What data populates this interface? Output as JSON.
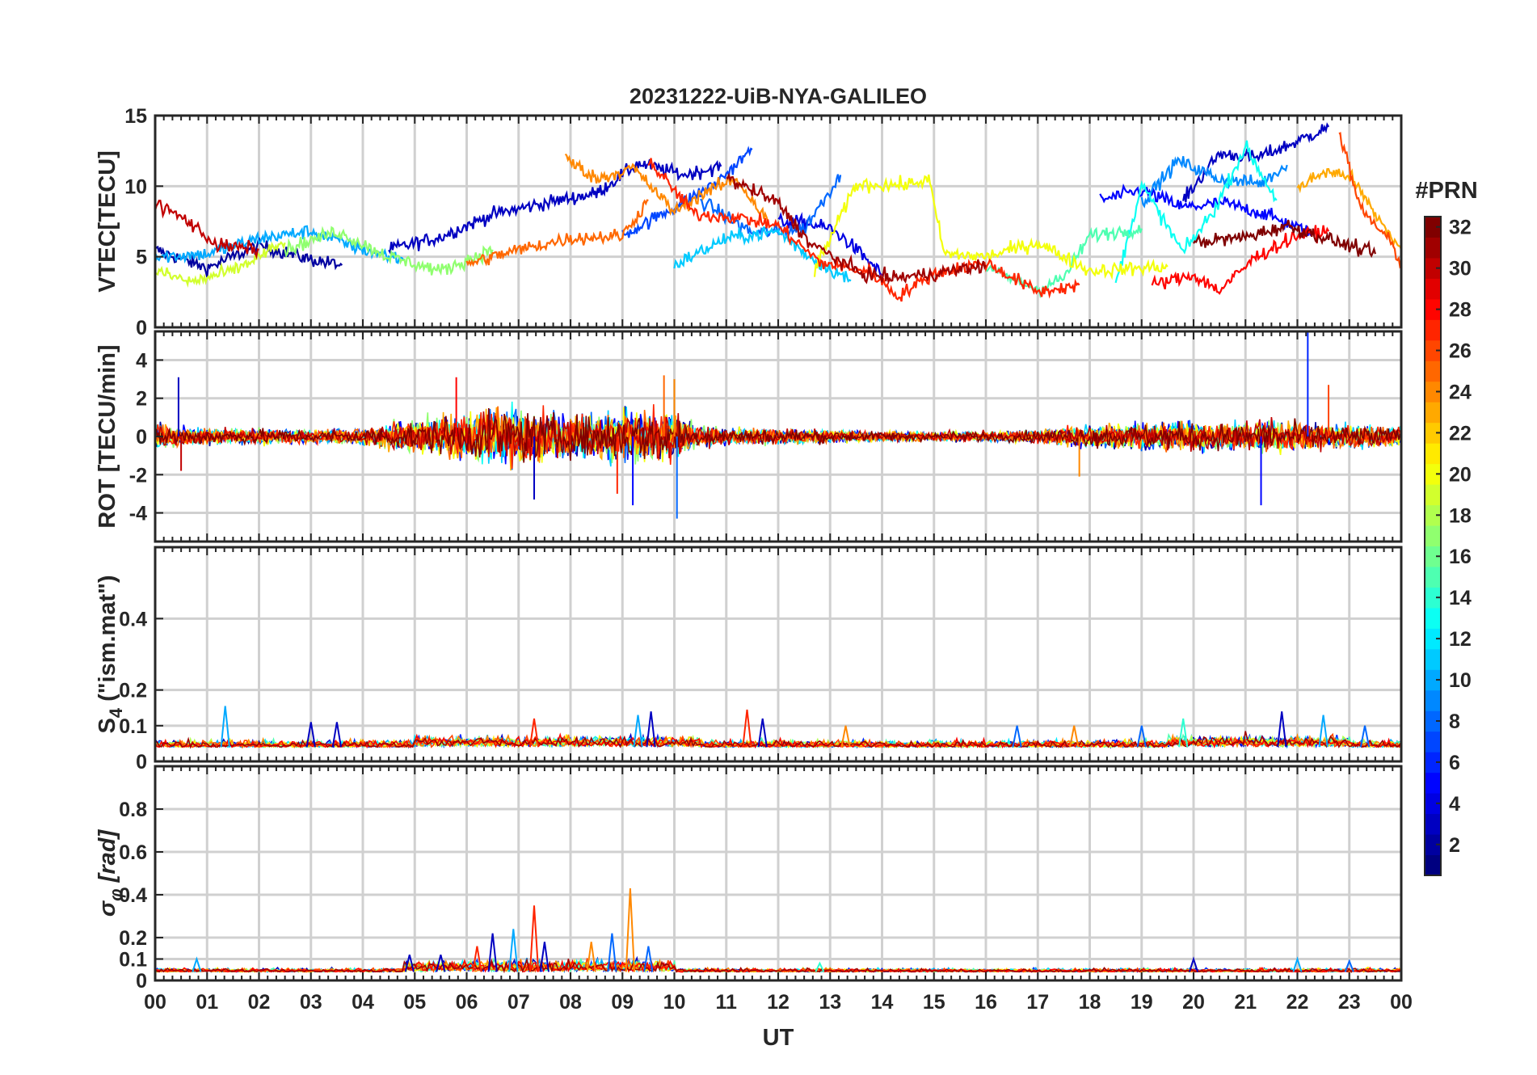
{
  "chart_data": {
    "type": "line",
    "title": "20231222-UiB-NYA-GALILEO",
    "xlabel": "UT",
    "x_tick_labels": [
      "00",
      "01",
      "02",
      "03",
      "04",
      "05",
      "06",
      "07",
      "08",
      "09",
      "10",
      "11",
      "12",
      "13",
      "14",
      "15",
      "16",
      "17",
      "18",
      "19",
      "20",
      "21",
      "22",
      "23",
      "00"
    ],
    "xlim": [
      0,
      24
    ],
    "colorbar": {
      "title": "#PRN",
      "range": [
        1,
        32
      ],
      "tick_labels": [
        "2",
        "4",
        "6",
        "8",
        "10",
        "12",
        "14",
        "16",
        "18",
        "20",
        "22",
        "24",
        "26",
        "28",
        "30",
        "32"
      ]
    },
    "panels": [
      {
        "name": "VTEC",
        "ylabel": "VTEC[TECU]",
        "ylim": [
          0,
          15
        ],
        "y_ticks": [
          0,
          5,
          10,
          15
        ],
        "y_tick_labels": [
          "0",
          "5",
          "10",
          "15"
        ],
        "series": [
          {
            "prn": 2,
            "x": [
              0,
              1,
              2,
              3,
              3.6
            ],
            "values": [
              5.5,
              4.2,
              5.8,
              4.8,
              4.4
            ]
          },
          {
            "prn": 3,
            "x": [
              4.5,
              5.5,
              6.5,
              7.5,
              8.5,
              9.3,
              10.2,
              10.9
            ],
            "values": [
              5.5,
              6.4,
              8.0,
              8.8,
              9.5,
              11.6,
              10.8,
              11.4
            ]
          },
          {
            "prn": 3,
            "x": [
              19.8,
              20.5,
              21.2,
              21.9,
              22.6
            ],
            "values": [
              9.0,
              12.3,
              12.0,
              13.0,
              14.2
            ]
          },
          {
            "prn": 4,
            "x": [
              12.0,
              12.5,
              13.0,
              13.3,
              14.0
            ],
            "values": [
              7.5,
              7.4,
              7.0,
              6.2,
              3.8
            ]
          },
          {
            "prn": 5,
            "x": [
              18.2,
              19.0,
              19.8,
              20.6,
              21.4,
              22.3
            ],
            "values": [
              9.0,
              9.7,
              8.5,
              8.8,
              8.0,
              6.6
            ]
          },
          {
            "prn": 7,
            "x": [
              9.0,
              10.0,
              10.8,
              11.5
            ],
            "values": [
              6.5,
              8.5,
              10.2,
              12.6
            ]
          },
          {
            "prn": 8,
            "x": [
              10.5,
              11.5,
              12.5,
              13.2
            ],
            "values": [
              9.0,
              6.7,
              7.0,
              10.8
            ]
          },
          {
            "prn": 9,
            "x": [
              19.0,
              19.7,
              20.5,
              21.3,
              21.8
            ],
            "values": [
              8.8,
              11.8,
              10.5,
              10.2,
              11.5
            ]
          },
          {
            "prn": 10,
            "x": [
              0,
              1,
              2,
              3,
              4,
              4.8
            ],
            "values": [
              5.0,
              5.2,
              6.3,
              6.8,
              5.5,
              4.8
            ]
          },
          {
            "prn": 11,
            "x": [
              10,
              11,
              12,
              12.6,
              13.4
            ],
            "values": [
              4.4,
              6.3,
              6.8,
              5.0,
              3.3
            ]
          },
          {
            "prn": 13,
            "x": [
              18.5,
              19.0,
              19.8,
              20.4,
              21.0,
              21.6
            ],
            "values": [
              3.0,
              10.1,
              5.3,
              8.3,
              12.8,
              9.0
            ]
          },
          {
            "prn": 15,
            "x": [
              16.0,
              17.0,
              17.5,
              18.0,
              19.0
            ],
            "values": [
              4.2,
              2.7,
              3.5,
              6.5,
              7.0
            ]
          },
          {
            "prn": 17,
            "x": [
              2.5,
              3.5,
              4.5,
              5.5,
              6.5
            ],
            "values": [
              5.5,
              6.8,
              5.0,
              4.0,
              5.5
            ]
          },
          {
            "prn": 19,
            "x": [
              0,
              0.7,
              1.5,
              2.5
            ],
            "values": [
              4.0,
              3.2,
              4.0,
              6.0
            ]
          },
          {
            "prn": 20,
            "x": [
              12.7,
              13.5,
              14.5,
              14.9,
              15.2,
              16.0,
              17.0,
              18.0,
              19.5
            ],
            "values": [
              4.0,
              10.1,
              10.1,
              10.5,
              5.2,
              5.0,
              6.0,
              4.0,
              4.3
            ]
          },
          {
            "prn": 23,
            "x": [
              22.0,
              22.5,
              23.0,
              23.5,
              24
            ],
            "values": [
              9.8,
              11.0,
              10.8,
              8.0,
              5.5
            ]
          },
          {
            "prn": 24,
            "x": [
              7.9,
              8.5,
              9.2,
              10.0,
              10.6,
              11.2,
              11.8
            ],
            "values": [
              12.0,
              10.5,
              11.3,
              8.2,
              9.6,
              10.5,
              7.5
            ]
          },
          {
            "prn": 25,
            "x": [
              6.0,
              7.0,
              8.0,
              9.0,
              9.5
            ],
            "values": [
              4.5,
              5.5,
              6.3,
              6.5,
              9.0
            ]
          },
          {
            "prn": 26,
            "x": [
              22.8,
              23.2,
              23.8,
              24
            ],
            "values": [
              14.0,
              8.5,
              6.0,
              4.5
            ]
          },
          {
            "prn": 27,
            "x": [
              9.5,
              10.4,
              11.2,
              12.0,
              12.8,
              13.8,
              14.3,
              15.0,
              16.0,
              17.0,
              17.8
            ],
            "values": [
              11.8,
              8.0,
              7.8,
              7.2,
              4.6,
              3.9,
              2.2,
              3.8,
              4.6,
              2.5,
              3.0
            ]
          },
          {
            "prn": 28,
            "x": [
              19.2,
              20.0,
              20.5,
              21.2,
              22.0,
              22.6
            ],
            "values": [
              3.0,
              3.7,
              2.6,
              5.0,
              6.5,
              6.8
            ]
          },
          {
            "prn": 30,
            "x": [
              0,
              0.6,
              1.2,
              2.0
            ],
            "values": [
              8.8,
              7.6,
              5.8,
              5.5
            ]
          },
          {
            "prn": 31,
            "x": [
              11.0,
              12.0,
              12.6,
              13.6,
              14.2,
              15.0,
              16.0
            ],
            "values": [
              10.6,
              8.8,
              6.0,
              3.8,
              3.5,
              3.8,
              4.4
            ]
          },
          {
            "prn": 32,
            "x": [
              20.0,
              21.0,
              21.8,
              22.8,
              23.5
            ],
            "values": [
              6.0,
              6.4,
              7.2,
              6.0,
              5.2
            ]
          }
        ]
      },
      {
        "name": "ROT",
        "ylabel": "ROT [TECU/min]",
        "ylim": [
          -5.5,
          5.5
        ],
        "y_ticks": [
          -4,
          -2,
          0,
          2,
          4
        ],
        "y_tick_labels": [
          "-4",
          "-2",
          "0",
          "2",
          "4"
        ],
        "activity_envelope": {
          "hours": [
            0,
            0.5,
            1,
            2,
            3,
            4,
            4.5,
            5,
            6,
            6.5,
            7,
            7.5,
            8,
            8.5,
            9,
            9.5,
            10,
            10.5,
            11,
            12,
            13,
            14,
            15,
            16,
            17,
            18,
            19,
            20,
            21,
            21.5,
            22,
            23,
            24
          ],
          "amplitude": [
            0.8,
            0.6,
            0.5,
            0.5,
            0.4,
            0.5,
            0.8,
            1.0,
            1.4,
            1.6,
            1.8,
            1.5,
            1.3,
            1.5,
            1.7,
            1.6,
            1.4,
            0.6,
            0.5,
            0.5,
            0.4,
            0.3,
            0.3,
            0.3,
            0.4,
            0.7,
            0.8,
            0.9,
            0.8,
            1.0,
            0.9,
            0.7,
            0.6
          ]
        },
        "peaks": [
          {
            "hour": 0.45,
            "value": 3.1
          },
          {
            "hour": 0.5,
            "value": -1.8
          },
          {
            "hour": 5.8,
            "value": 3.1
          },
          {
            "hour": 7.3,
            "value": -3.3
          },
          {
            "hour": 8.9,
            "value": -3.0
          },
          {
            "hour": 9.2,
            "value": -3.6
          },
          {
            "hour": 9.8,
            "value": 3.2
          },
          {
            "hour": 10.05,
            "value": -4.3
          },
          {
            "hour": 10.0,
            "value": 3.0
          },
          {
            "hour": 21.3,
            "value": -3.6
          },
          {
            "hour": 22.2,
            "value": 5.5
          },
          {
            "hour": 22.6,
            "value": 2.7
          },
          {
            "hour": 17.8,
            "value": -2.1
          }
        ]
      },
      {
        "name": "S4",
        "ylabel": "S4 (\"ism.mat\")",
        "ylabel_main": "S",
        "ylabel_sub": "4",
        "ylabel_rest": "(\"ism.mat\")",
        "ylim": [
          0,
          0.6
        ],
        "y_ticks": [
          0,
          0.1,
          0.2,
          0.4
        ],
        "y_tick_labels": [
          "0",
          "0.1",
          "0.2",
          "0.4"
        ],
        "baseline": 0.04,
        "peaks": [
          {
            "hour": 1.35,
            "value": 0.155
          },
          {
            "hour": 3.0,
            "value": 0.11
          },
          {
            "hour": 3.5,
            "value": 0.11
          },
          {
            "hour": 7.3,
            "value": 0.12
          },
          {
            "hour": 9.55,
            "value": 0.14
          },
          {
            "hour": 9.3,
            "value": 0.13
          },
          {
            "hour": 11.4,
            "value": 0.145
          },
          {
            "hour": 11.7,
            "value": 0.12
          },
          {
            "hour": 13.3,
            "value": 0.1
          },
          {
            "hour": 16.6,
            "value": 0.1
          },
          {
            "hour": 17.7,
            "value": 0.1
          },
          {
            "hour": 19.0,
            "value": 0.1
          },
          {
            "hour": 19.8,
            "value": 0.12
          },
          {
            "hour": 21.7,
            "value": 0.14
          },
          {
            "hour": 22.5,
            "value": 0.13
          },
          {
            "hour": 23.3,
            "value": 0.1
          }
        ]
      },
      {
        "name": "SigmaPhi",
        "ylabel": "σφ[rad]",
        "ylabel_main": "σ",
        "ylabel_sub": "φ",
        "ylabel_rest": "[rad]",
        "ylim": [
          0,
          1.0
        ],
        "y_ticks": [
          0,
          0.1,
          0.2,
          0.4,
          0.6,
          0.8
        ],
        "y_tick_labels": [
          "0",
          "0.1",
          "0.2",
          "0.4",
          "0.6",
          "0.8"
        ],
        "baseline": 0.04,
        "peaks": [
          {
            "hour": 0.8,
            "value": 0.1
          },
          {
            "hour": 4.9,
            "value": 0.12
          },
          {
            "hour": 5.5,
            "value": 0.12
          },
          {
            "hour": 6.2,
            "value": 0.16
          },
          {
            "hour": 6.5,
            "value": 0.22
          },
          {
            "hour": 6.9,
            "value": 0.24
          },
          {
            "hour": 7.3,
            "value": 0.35
          },
          {
            "hour": 7.5,
            "value": 0.18
          },
          {
            "hour": 8.4,
            "value": 0.18
          },
          {
            "hour": 8.8,
            "value": 0.22
          },
          {
            "hour": 9.15,
            "value": 0.43
          },
          {
            "hour": 9.5,
            "value": 0.16
          },
          {
            "hour": 12.8,
            "value": 0.08
          },
          {
            "hour": 20.0,
            "value": 0.1
          },
          {
            "hour": 22.0,
            "value": 0.1
          },
          {
            "hour": 23.0,
            "value": 0.09
          }
        ]
      }
    ]
  }
}
